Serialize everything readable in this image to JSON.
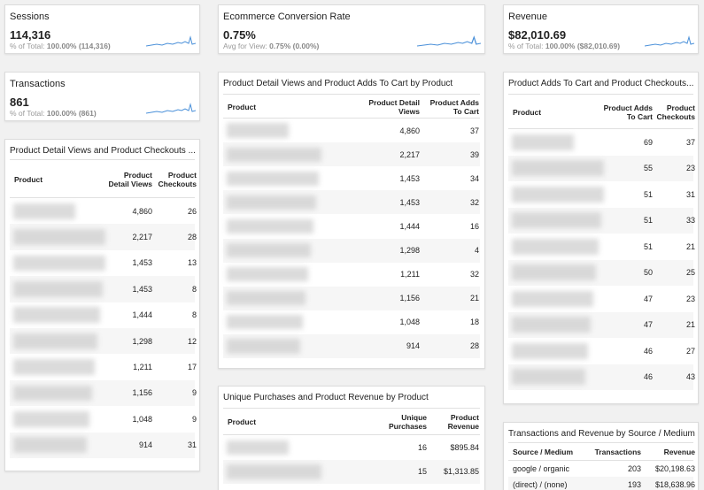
{
  "scorecards": [
    {
      "title": "Sessions",
      "value": "114,316",
      "note_label": "% of Total:",
      "note_value": "100.00% (114,316)"
    },
    {
      "title": "Ecommerce Conversion Rate",
      "value": "0.75%",
      "note_label": "Avg for View:",
      "note_value": "0.75% (0.00%)"
    },
    {
      "title": "Revenue",
      "value": "$82,010.69",
      "note_label": "% of Total:",
      "note_value": "100.00% ($82,010.69)"
    },
    {
      "title": "Transactions",
      "value": "861",
      "note_label": "% of Total:",
      "note_value": "100.00% (861)"
    }
  ],
  "tables": [
    {
      "title": "Product Detail Views and Product Checkouts ...",
      "columns": [
        "Product",
        "Product Detail Views",
        "Product Checkouts"
      ],
      "rows": [
        [
          "4,860",
          "26"
        ],
        [
          "2,217",
          "28"
        ],
        [
          "1,453",
          "13"
        ],
        [
          "1,453",
          "8"
        ],
        [
          "1,444",
          "8"
        ],
        [
          "1,298",
          "12"
        ],
        [
          "1,211",
          "17"
        ],
        [
          "1,156",
          "9"
        ],
        [
          "1,048",
          "9"
        ],
        [
          "914",
          "31"
        ]
      ]
    },
    {
      "title": "Product Detail Views and Product Adds To Cart by Product",
      "columns": [
        "Product",
        "Product Detail Views",
        "Product Adds To Cart"
      ],
      "rows": [
        [
          "4,860",
          "37"
        ],
        [
          "2,217",
          "39"
        ],
        [
          "1,453",
          "34"
        ],
        [
          "1,453",
          "32"
        ],
        [
          "1,444",
          "16"
        ],
        [
          "1,298",
          "4"
        ],
        [
          "1,211",
          "32"
        ],
        [
          "1,156",
          "21"
        ],
        [
          "1,048",
          "18"
        ],
        [
          "914",
          "28"
        ]
      ]
    },
    {
      "title": "Product Adds To Cart and Product Checkouts...",
      "columns": [
        "Product",
        "Product Adds To Cart",
        "Product Checkouts"
      ],
      "rows": [
        [
          "69",
          "37"
        ],
        [
          "55",
          "23"
        ],
        [
          "51",
          "31"
        ],
        [
          "51",
          "33"
        ],
        [
          "51",
          "21"
        ],
        [
          "50",
          "25"
        ],
        [
          "47",
          "23"
        ],
        [
          "47",
          "21"
        ],
        [
          "46",
          "27"
        ],
        [
          "46",
          "43"
        ]
      ]
    },
    {
      "title": "Unique Purchases and Product Revenue by Product",
      "columns": [
        "Product",
        "Unique Purchases",
        "Product Revenue"
      ],
      "rows": [
        [
          "16",
          "$895.84"
        ],
        [
          "15",
          "$1,313.85"
        ]
      ]
    },
    {
      "title": "Transactions and Revenue by Source / Medium",
      "columns": [
        "Source / Medium",
        "Transactions",
        "Revenue"
      ],
      "rows": [
        [
          "google / organic",
          "203",
          "$20,198.63"
        ],
        [
          "(direct) / (none)",
          "193",
          "$18,638.96"
        ]
      ]
    }
  ]
}
